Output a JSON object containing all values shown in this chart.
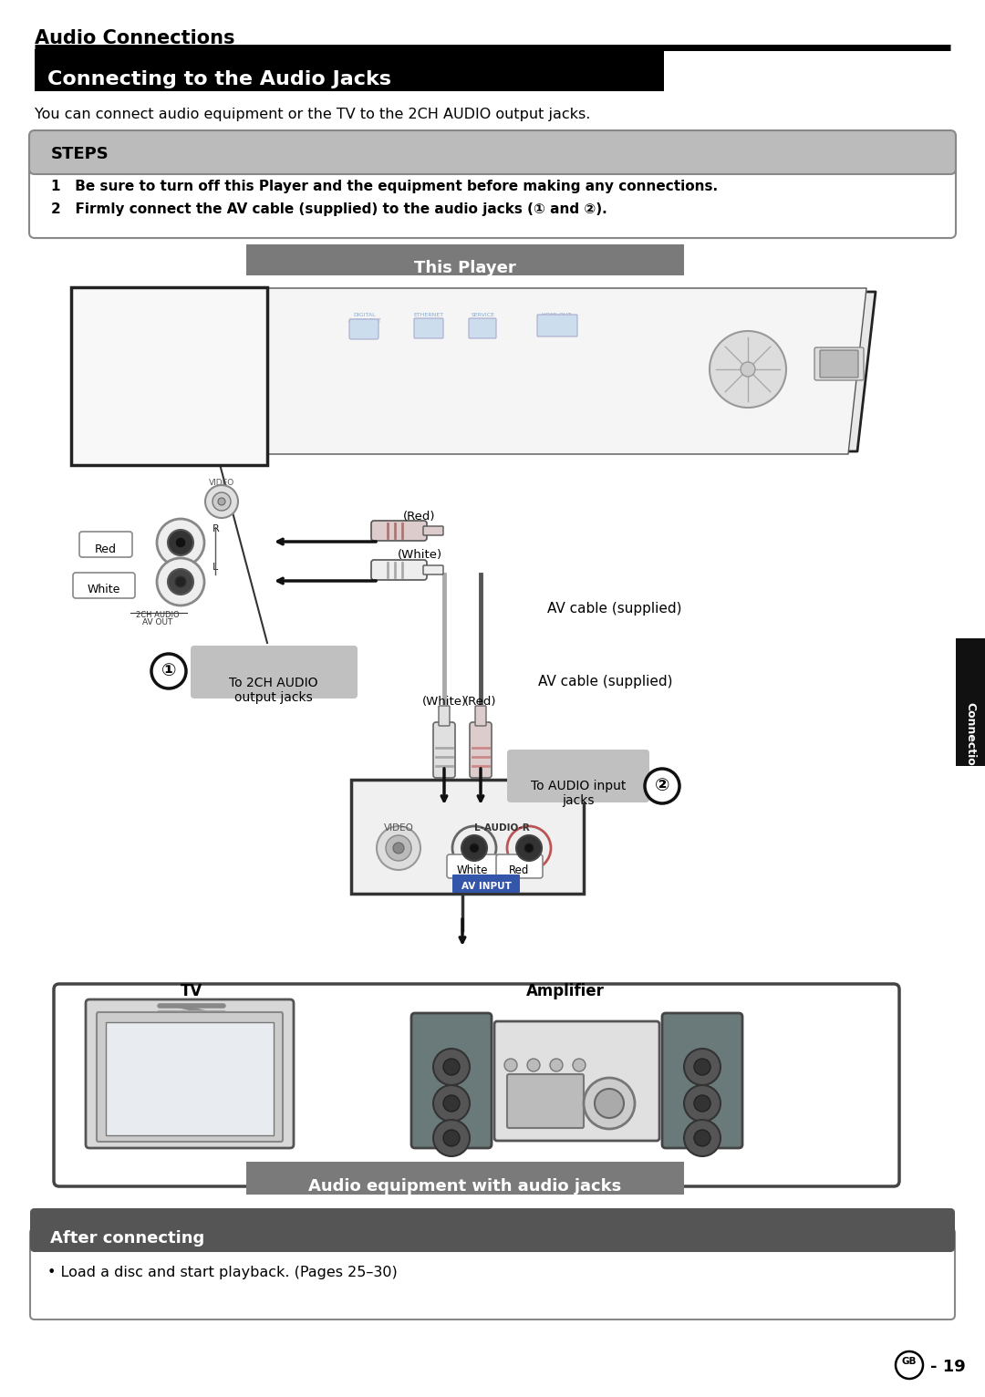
{
  "page_bg": "#ffffff",
  "title_section": "Audio Connections",
  "section_title": "Connecting to the Audio Jacks",
  "section_title_bg": "#000000",
  "section_title_color": "#ffffff",
  "subtitle_text": "You can connect audio equipment or the TV to the 2CH AUDIO output jacks.",
  "steps_bg": "#c0c0c0",
  "steps_title": "STEPS",
  "step1": "Be sure to turn off this Player and the equipment before making any connections.",
  "step2": "Firmly connect the AV cable (supplied) to the audio jacks (① and ②).",
  "this_player_bg": "#7a7a7a",
  "this_player_text": "This Player",
  "audio_eq_bg": "#7a7a7a",
  "audio_eq_text": "Audio equipment with audio jacks",
  "after_connecting_bg": "#555555",
  "after_connecting_text": "After connecting",
  "after_connecting_body": "• Load a disc and start playback. (Pages 25–30)",
  "connection_tab_bg": "#111111",
  "connection_tab_text": "Connection",
  "label_to_2ch": "To 2CH AUDIO\noutput jacks",
  "label_av_cable": "AV cable (supplied)",
  "label_to_audio_input": "To AUDIO input\njacks",
  "label_tv": "TV",
  "label_amplifier": "Amplifier",
  "circle1_text": "①",
  "circle2_text": "②",
  "page_num": "19"
}
